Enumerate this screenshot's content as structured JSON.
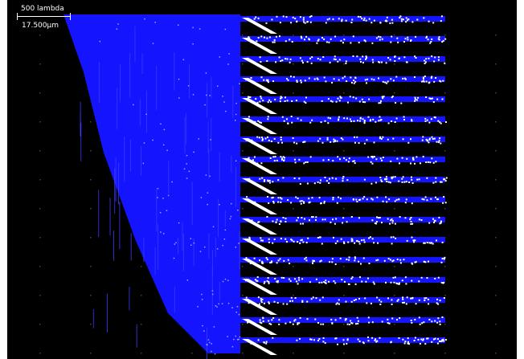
{
  "scale_bar": {
    "units_label": "500 lambda",
    "length_label": "17.500µm"
  },
  "colors": {
    "background": "#000000",
    "metal": "#1414ff",
    "via_dots": "#ffffff",
    "grid_dots": "#444444"
  }
}
